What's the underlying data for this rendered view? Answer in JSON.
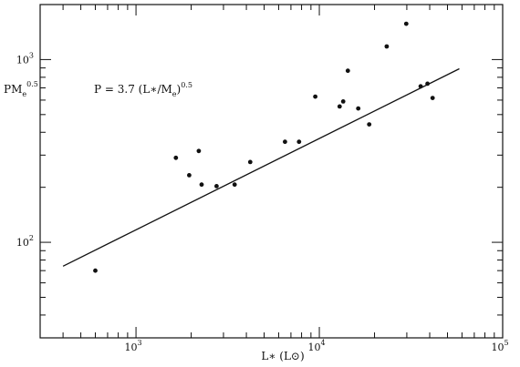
{
  "chart_data": {
    "type": "scatter",
    "x_scale": "log",
    "y_scale": "log",
    "xlim": [
      300,
      100000
    ],
    "ylim": [
      30,
      2000
    ],
    "grid": false,
    "xlabel": "L∗ (L⊙)",
    "ylabel": {
      "base": "PM",
      "sub": "e",
      "sup": "0.5"
    },
    "x_ticks": [
      {
        "value": 1000,
        "base": "10",
        "exp": "3"
      },
      {
        "value": 10000,
        "base": "10",
        "exp": "4"
      },
      {
        "value": 100000,
        "base": "10",
        "exp": "5"
      }
    ],
    "y_ticks": [
      {
        "value": 100,
        "base": "10",
        "exp": "2"
      },
      {
        "value": 1000,
        "base": "10",
        "exp": "3"
      }
    ],
    "annotation": {
      "pre": "P = 3.7 (L∗/M",
      "sub": "e",
      "post": ")",
      "sup": "0.5"
    },
    "fit_line": {
      "coefficient": 3.7,
      "exponent": 0.5,
      "x_range": [
        400,
        58000
      ]
    },
    "points": [
      {
        "x": 600,
        "y": 70
      },
      {
        "x": 1650,
        "y": 290
      },
      {
        "x": 1950,
        "y": 233
      },
      {
        "x": 2200,
        "y": 316
      },
      {
        "x": 2280,
        "y": 207
      },
      {
        "x": 2750,
        "y": 203
      },
      {
        "x": 3450,
        "y": 207
      },
      {
        "x": 4200,
        "y": 275
      },
      {
        "x": 6500,
        "y": 355
      },
      {
        "x": 7750,
        "y": 355
      },
      {
        "x": 9500,
        "y": 627
      },
      {
        "x": 12900,
        "y": 554
      },
      {
        "x": 13500,
        "y": 590
      },
      {
        "x": 14300,
        "y": 868
      },
      {
        "x": 16300,
        "y": 540
      },
      {
        "x": 18700,
        "y": 442
      },
      {
        "x": 23300,
        "y": 1180
      },
      {
        "x": 29800,
        "y": 1570
      },
      {
        "x": 35700,
        "y": 714
      },
      {
        "x": 38900,
        "y": 738
      },
      {
        "x": 41500,
        "y": 616
      }
    ]
  }
}
